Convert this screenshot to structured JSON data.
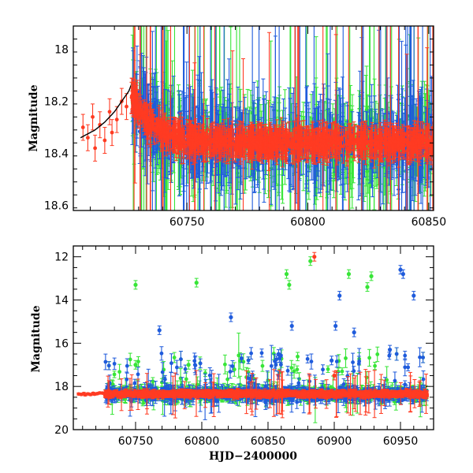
{
  "chart_data": [
    {
      "type": "scatter",
      "panel": "top",
      "title": "",
      "xlabel": "",
      "ylabel": "Magnitude",
      "xlim": [
        60703,
        60852
      ],
      "ylim": [
        18.62,
        17.91
      ],
      "y_inverted": true,
      "xticks_major": [
        60750,
        60800,
        60850
      ],
      "yticks_major": [
        18.0,
        18.2,
        18.4,
        18.6
      ],
      "xtick_labels": [
        "60750",
        "60800",
        "60850"
      ],
      "ytick_labels": [
        "18",
        "18.2",
        "18.4",
        "18.6"
      ],
      "colors": {
        "red": "#ff3b22",
        "blue": "#1f5bdc",
        "green": "#37e537",
        "curve": "#000000"
      },
      "series": [
        {
          "name": "red",
          "color": "#ff3b22",
          "description": "early baseline points",
          "x": [
            60707,
            60709,
            60711,
            60712,
            60714,
            60716,
            60718,
            60719,
            60721,
            60723,
            60725
          ],
          "y": [
            18.3,
            18.34,
            18.26,
            18.38,
            18.29,
            18.35,
            18.24,
            18.32,
            18.27,
            18.2,
            18.22
          ]
        },
        {
          "name": "fit-curve",
          "color": "#000000",
          "type": "line",
          "x": [
            60706,
            60712,
            60716,
            60720,
            60723,
            60726,
            60728
          ],
          "y": [
            18.34,
            18.31,
            18.28,
            18.24,
            18.2,
            18.16,
            18.11
          ]
        },
        {
          "name": "trend",
          "type": "decay",
          "x_start": 60727,
          "x_end": 60852,
          "y_start": 18.17,
          "y_plateau": 18.36
        }
      ]
    },
    {
      "type": "scatter",
      "panel": "bottom",
      "title": "",
      "xlabel": "HJD−2400000",
      "ylabel": "Magnitude",
      "xlim": [
        60703,
        60975
      ],
      "ylim": [
        20,
        11.5
      ],
      "y_inverted": true,
      "xticks_major": [
        60750,
        60800,
        60850,
        60900,
        60950
      ],
      "yticks_major": [
        12,
        14,
        16,
        18,
        20
      ],
      "xtick_labels": [
        "60750",
        "60800",
        "60850",
        "60900",
        "60950"
      ],
      "ytick_labels": [
        "12",
        "14",
        "16",
        "18",
        "20"
      ],
      "baseline": 18.35,
      "outliers": [
        {
          "color": "green",
          "x": 60750,
          "y": 13.3
        },
        {
          "color": "green",
          "x": 60796,
          "y": 13.2
        },
        {
          "color": "green",
          "x": 60864,
          "y": 12.8
        },
        {
          "color": "green",
          "x": 60866,
          "y": 13.3
        },
        {
          "color": "green",
          "x": 60882,
          "y": 12.2
        },
        {
          "color": "red",
          "x": 60885,
          "y": 12.0
        },
        {
          "color": "green",
          "x": 60911,
          "y": 12.8
        },
        {
          "color": "green",
          "x": 60928,
          "y": 12.9
        },
        {
          "color": "green",
          "x": 60925,
          "y": 13.4
        },
        {
          "color": "blue",
          "x": 60950,
          "y": 12.6
        },
        {
          "color": "blue",
          "x": 60952,
          "y": 12.8
        },
        {
          "color": "blue",
          "x": 60960,
          "y": 13.8
        },
        {
          "color": "blue",
          "x": 60904,
          "y": 13.8
        },
        {
          "color": "blue",
          "x": 60768,
          "y": 15.4
        },
        {
          "color": "blue",
          "x": 60822,
          "y": 14.8
        },
        {
          "color": "blue",
          "x": 60868,
          "y": 15.2
        },
        {
          "color": "blue",
          "x": 60901,
          "y": 15.2
        },
        {
          "color": "blue",
          "x": 60915,
          "y": 15.5
        },
        {
          "color": "blue",
          "x": 60942,
          "y": 16.3
        },
        {
          "color": "blue",
          "x": 60898,
          "y": 16.8
        },
        {
          "color": "blue",
          "x": 60858,
          "y": 16.5
        },
        {
          "color": "blue",
          "x": 60830,
          "y": 16.7
        },
        {
          "color": "green",
          "x": 60750,
          "y": 17.0
        },
        {
          "color": "green",
          "x": 60790,
          "y": 17.0
        },
        {
          "color": "red",
          "x": 60900,
          "y": 17.5
        }
      ]
    }
  ]
}
